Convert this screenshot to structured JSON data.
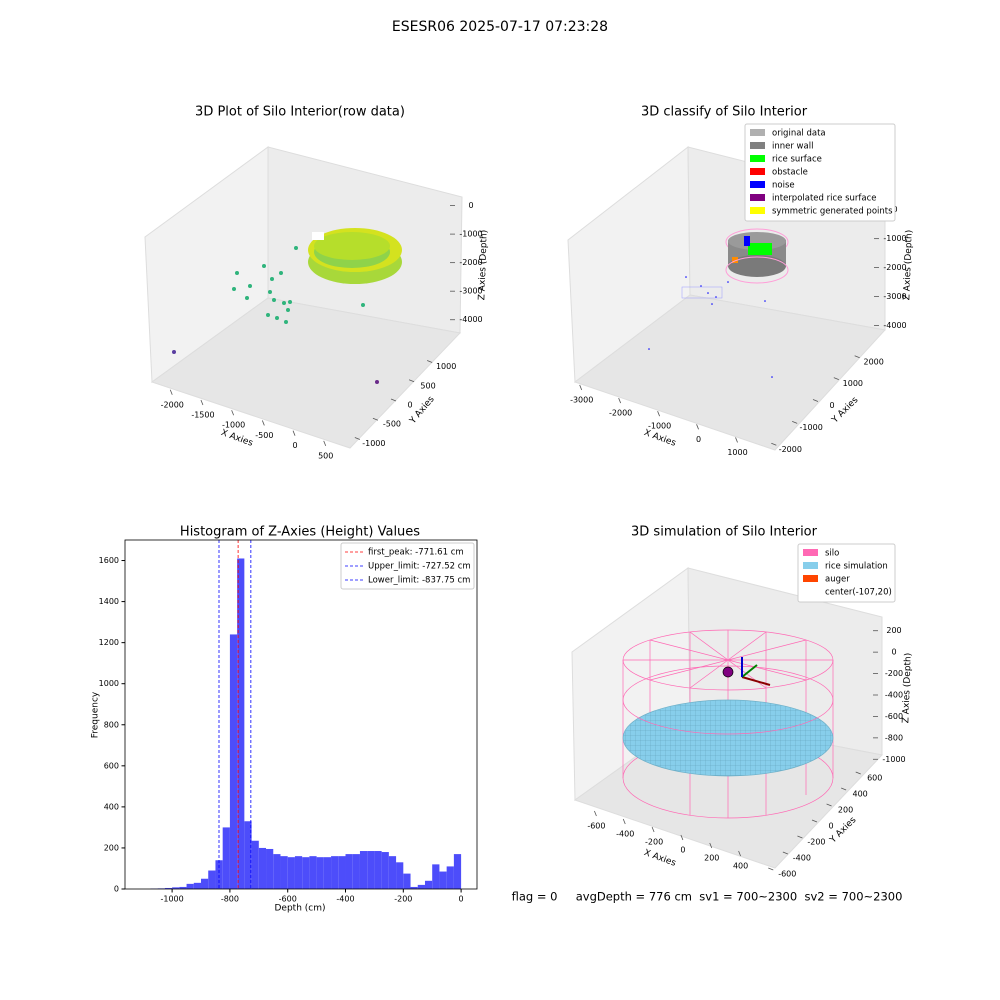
{
  "title": "ESESR06 2025-07-17 07:23:28",
  "footer": "flag = 0     avgDepth = 776 cm  sv1 = 700~2300  sv2 = 700~2300",
  "chart_data": [
    {
      "type": "scatter3d",
      "title": "3D Plot of Silo Interior(row data)",
      "xlabel": "X Axies",
      "ylabel": "Y Axies",
      "zlabel": "Z Axies (Depth)",
      "xlim": [
        -2330,
        700
      ],
      "xticks": [
        -2000,
        -1500,
        -1000,
        -500,
        0,
        500
      ],
      "ylim": [
        -1300,
        1300
      ],
      "yticks": [
        -1000,
        -500,
        0,
        500,
        1000
      ],
      "zlim": [
        -4500,
        300
      ],
      "zticks": [
        0,
        -1000,
        -2000,
        -3000,
        -4000
      ]
    },
    {
      "type": "scatter3d",
      "title": "3D classify of Silo Interior",
      "xlabel": "X Axies",
      "ylabel": "Y Axies",
      "zlabel": "Z Axies (Depth)",
      "xlim": [
        -3300,
        1500
      ],
      "xticks": [
        -3000,
        -2000,
        -1000,
        0,
        1000
      ],
      "ylim": [
        -2400,
        2400
      ],
      "yticks": [
        -2000,
        -1000,
        0,
        1000,
        2000
      ],
      "zlim": [
        -4500,
        300
      ],
      "zticks": [
        0,
        -1000,
        -2000,
        -3000,
        -4000
      ],
      "series": [
        {
          "name": "original data",
          "color": "#b0b0b0"
        },
        {
          "name": "inner wall",
          "color": "#808080"
        },
        {
          "name": "rice surface",
          "color": "#00ff00"
        },
        {
          "name": "obstacle",
          "color": "#ff0000"
        },
        {
          "name": "noise",
          "color": "#0000ff"
        },
        {
          "name": "interpolated rice surface",
          "color": "#800080"
        },
        {
          "name": "symmetric generated points",
          "color": "#ffff00"
        }
      ]
    },
    {
      "type": "histogram",
      "title": "Histogram of Z-Axies (Height) Values",
      "xlabel": "Depth (cm)",
      "ylabel": "Frequency",
      "color": "#4d4dfa",
      "xlim": [
        -1163,
        55
      ],
      "xticks": [
        -1000,
        -800,
        -600,
        -400,
        -200,
        0
      ],
      "ylim": [
        0,
        1700
      ],
      "yticks": [
        0,
        200,
        400,
        600,
        800,
        1000,
        1200,
        1400,
        1600
      ],
      "bins": [
        -1075,
        -1050,
        -1025,
        -1000,
        -975,
        -950,
        -925,
        -900,
        -875,
        -850,
        -825,
        -800,
        -775,
        -750,
        -725,
        -700,
        -675,
        -650,
        -625,
        -600,
        -575,
        -550,
        -525,
        -500,
        -475,
        -450,
        -425,
        -400,
        -375,
        -350,
        -325,
        -300,
        -275,
        -250,
        -225,
        -200,
        -175,
        -150,
        -125,
        -100,
        -75,
        -50,
        -25,
        0
      ],
      "values": [
        2,
        3,
        5,
        8,
        10,
        25,
        30,
        50,
        90,
        140,
        300,
        1240,
        1610,
        330,
        235,
        200,
        195,
        170,
        160,
        155,
        160,
        155,
        160,
        155,
        155,
        160,
        160,
        170,
        170,
        185,
        185,
        185,
        180,
        160,
        130,
        75,
        10,
        20,
        40,
        120,
        85,
        110,
        170
      ],
      "vlines": [
        {
          "name": "first_peak: -771.61 cm",
          "value": -771.61,
          "color": "#ff0000"
        },
        {
          "name": "Upper_limit: -727.52 cm",
          "value": -727.52,
          "color": "#0000ff"
        },
        {
          "name": "Lower_limit: -837.75 cm",
          "value": -837.75,
          "color": "#0000ff"
        }
      ]
    },
    {
      "type": "surface3d",
      "title": "3D simulation of Silo Interior",
      "xlabel": "X Axies",
      "ylabel": "Y Axies",
      "zlabel": "Z Axies (Depth)",
      "xlim": [
        -700,
        500
      ],
      "xticks": [
        -600,
        -400,
        -200,
        0,
        200,
        400
      ],
      "ylim": [
        -700,
        700
      ],
      "yticks": [
        -600,
        -400,
        -200,
        0,
        200,
        400,
        600
      ],
      "zlim": [
        -1100,
        300
      ],
      "zticks": [
        200,
        0,
        -200,
        -400,
        -600,
        -800,
        -1000
      ],
      "series": [
        {
          "name": "silo",
          "color": "#ff69b4"
        },
        {
          "name": "rice simulation",
          "color": "#87ceeb"
        },
        {
          "name": "auger",
          "color": "#ff4500"
        },
        {
          "name": "center(-107,20)"
        }
      ]
    }
  ]
}
